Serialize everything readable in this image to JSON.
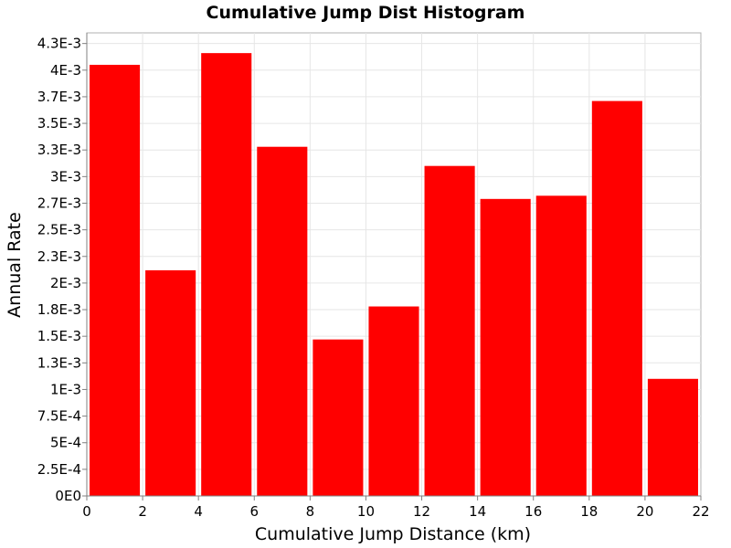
{
  "chart_data": {
    "type": "bar",
    "title": "Cumulative Jump Dist Histogram",
    "xlabel": "Cumulative Jump Distance (km)",
    "ylabel": "Annual Rate",
    "x_bins": [
      {
        "start": 0,
        "end": 2,
        "value": 0.00405
      },
      {
        "start": 2,
        "end": 4,
        "value": 0.00212
      },
      {
        "start": 4,
        "end": 6,
        "value": 0.00416
      },
      {
        "start": 6,
        "end": 8,
        "value": 0.00328
      },
      {
        "start": 8,
        "end": 10,
        "value": 0.00147
      },
      {
        "start": 10,
        "end": 12,
        "value": 0.00178
      },
      {
        "start": 12,
        "end": 14,
        "value": 0.0031
      },
      {
        "start": 14,
        "end": 16,
        "value": 0.00279
      },
      {
        "start": 16,
        "end": 18,
        "value": 0.00282
      },
      {
        "start": 18,
        "end": 20,
        "value": 0.00371
      },
      {
        "start": 20,
        "end": 22,
        "value": 0.0011
      }
    ],
    "xlim": [
      0,
      22
    ],
    "ylim": [
      0,
      0.00435
    ],
    "x_ticks": [
      0,
      2,
      4,
      6,
      8,
      10,
      12,
      14,
      16,
      18,
      20,
      22
    ],
    "x_tick_labels": [
      "0",
      "2",
      "4",
      "6",
      "8",
      "10",
      "12",
      "14",
      "16",
      "18",
      "20",
      "22"
    ],
    "y_ticks": [
      0,
      0.00025,
      0.0005,
      0.00075,
      0.001,
      0.00125,
      0.0015,
      0.00175,
      0.002,
      0.00225,
      0.0025,
      0.00275,
      0.003,
      0.00325,
      0.0035,
      0.00375,
      0.004,
      0.00425
    ],
    "y_tick_labels": [
      "0E0",
      "2.5E-4",
      "5E-4",
      "7.5E-4",
      "1E-3",
      "1.3E-3",
      "1.5E-3",
      "1.8E-3",
      "2E-3",
      "2.3E-3",
      "2.5E-3",
      "2.7E-3",
      "3E-3",
      "3.3E-3",
      "3.5E-3",
      "3.7E-3",
      "4E-3",
      "4.3E-3"
    ],
    "grid": true,
    "colors": {
      "bar": "#ff0000",
      "grid": "#e6e6e6",
      "background": "#ffffff"
    }
  }
}
